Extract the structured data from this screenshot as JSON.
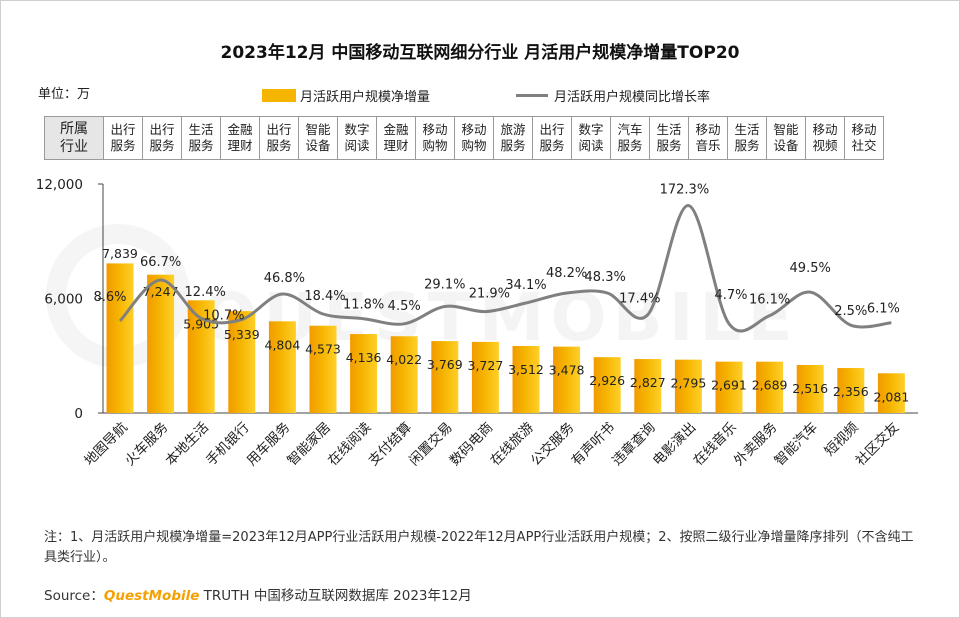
{
  "title": "2023年12月 中国移动互联网细分行业 月活用户规模净增量TOP20",
  "unit_label": "单位：万",
  "legend": {
    "bar_label": "月活跃用户规模净增量",
    "line_label": "月活跃用户规模同比增长率",
    "bar_color": "#f5b400",
    "line_color": "#808080"
  },
  "category_table": {
    "header": [
      "所属",
      "行业"
    ],
    "cells": [
      [
        "出行",
        "服务"
      ],
      [
        "出行",
        "服务"
      ],
      [
        "生活",
        "服务"
      ],
      [
        "金融",
        "理财"
      ],
      [
        "出行",
        "服务"
      ],
      [
        "智能",
        "设备"
      ],
      [
        "数字",
        "阅读"
      ],
      [
        "金融",
        "理财"
      ],
      [
        "移动",
        "购物"
      ],
      [
        "移动",
        "购物"
      ],
      [
        "旅游",
        "服务"
      ],
      [
        "出行",
        "服务"
      ],
      [
        "数字",
        "阅读"
      ],
      [
        "汽车",
        "服务"
      ],
      [
        "生活",
        "服务"
      ],
      [
        "移动",
        "音乐"
      ],
      [
        "生活",
        "服务"
      ],
      [
        "智能",
        "设备"
      ],
      [
        "移动",
        "视频"
      ],
      [
        "移动",
        "社交"
      ]
    ]
  },
  "chart_data": {
    "type": "bar",
    "categories": [
      "地图导航",
      "火车服务",
      "本地生活",
      "手机银行",
      "用车服务",
      "智能家居",
      "在线阅读",
      "支付结算",
      "闲置交易",
      "数码电商",
      "在线旅游",
      "公交服务",
      "有声听书",
      "违章查询",
      "电影演出",
      "在线音乐",
      "外卖服务",
      "智能汽车",
      "短视频",
      "社区交友"
    ],
    "series": [
      {
        "name": "月活跃用户规模净增量",
        "type": "bar",
        "values": [
          7839,
          7247,
          5905,
          5339,
          4804,
          4573,
          4136,
          4022,
          3769,
          3727,
          3512,
          3478,
          2926,
          2827,
          2795,
          2691,
          2689,
          2516,
          2356,
          2081
        ],
        "labels": [
          "7,839",
          "7,247",
          "5,905",
          "5,339",
          "4,804",
          "4,573",
          "4,136",
          "4,022",
          "3,769",
          "3,727",
          "3,512",
          "3,478",
          "2,926",
          "2,827",
          "2,795",
          "2,691",
          "2,689",
          "2,516",
          "2,356",
          "2,081"
        ]
      },
      {
        "name": "月活跃用户规模同比增长率",
        "type": "line",
        "values": [
          8.6,
          66.7,
          12.4,
          10.7,
          46.8,
          18.4,
          11.8,
          4.5,
          29.1,
          21.9,
          34.1,
          48.2,
          48.3,
          17.4,
          172.3,
          4.7,
          16.1,
          49.5,
          2.5,
          6.1
        ],
        "labels": [
          "8.6%",
          "66.7%",
          "12.4%",
          "10.7%",
          "46.8%",
          "18.4%",
          "11.8%",
          "4.5%",
          "29.1%",
          "21.9%",
          "34.1%",
          "48.2%",
          "48.3%",
          "17.4%",
          "172.3%",
          "4.7%",
          "16.1%",
          "49.5%",
          "2.5%",
          "6.1%"
        ]
      }
    ],
    "y_ticks": [
      "12,000",
      "6,000",
      "0"
    ],
    "ylim": [
      0,
      12000
    ],
    "watermark": "QUESTMOBILE"
  },
  "note": "注：1、月活跃用户规模净增量=2023年12月APP行业活跃用户规模-2022年12月APP行业活跃用户规模；2、按照二级行业净增量降序排列（不含纯工具类行业）。",
  "source": {
    "prefix": "Source：",
    "brand": "QuestMobile",
    "suffix": " TRUTH 中国移动互联网数据库 2023年12月"
  }
}
